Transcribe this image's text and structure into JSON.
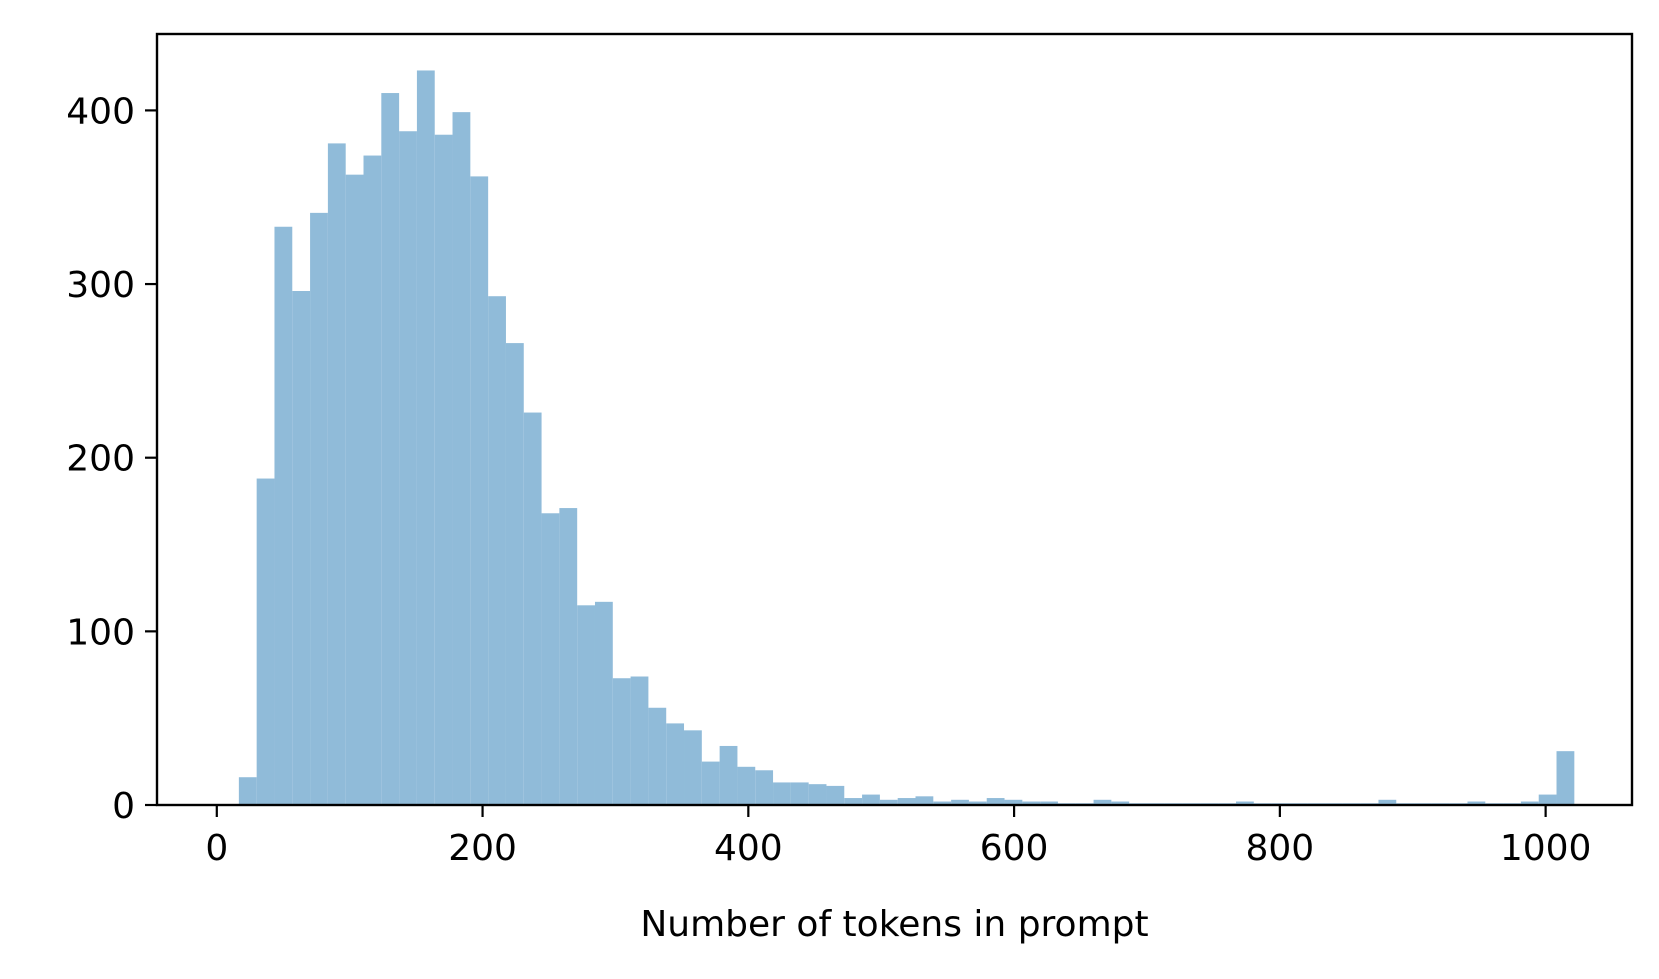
{
  "chart_data": {
    "type": "bar",
    "title": "",
    "xlabel": "Number of tokens in prompt",
    "ylabel": "",
    "xlim": [
      -45,
      1065
    ],
    "ylim": [
      0,
      444
    ],
    "grid": false,
    "legend": "none",
    "x_ticks": [
      0,
      200,
      400,
      600,
      800,
      1000
    ],
    "y_ticks": [
      0,
      100,
      200,
      300,
      400
    ],
    "bar_color": "#90bbd9",
    "bins": {
      "x_start": [
        16.6,
        30,
        43.4,
        56.8,
        70.2,
        83.6,
        97,
        110.4,
        123.8,
        137.2,
        150.6,
        164,
        177.4,
        190.8,
        204.2,
        217.6,
        231,
        244.4,
        257.8,
        271.2,
        284.6,
        298,
        311.4,
        324.8,
        338.2,
        351.6,
        365,
        378.4,
        391.8,
        405.2,
        418.6,
        432,
        445.4,
        458.8,
        472.2,
        485.6,
        499,
        512.4,
        525.8,
        539.2,
        552.6,
        566,
        579.4,
        592.8,
        606.2,
        619.6,
        633,
        646.4,
        659.8,
        673.2,
        686.6,
        700,
        713.4,
        726.8,
        740.2,
        753.6,
        767,
        780.4,
        793.8,
        807.2,
        820.6,
        834,
        847.4,
        860.8,
        874.2,
        887.6,
        901,
        914.4,
        927.8,
        941.2,
        954.6,
        968,
        981.4,
        994.8,
        1008.2
      ],
      "x_end": [
        30,
        43.4,
        56.8,
        70.2,
        83.6,
        97,
        110.4,
        123.8,
        137.2,
        150.6,
        164,
        177.4,
        190.8,
        204.2,
        217.6,
        231,
        244.4,
        257.8,
        271.2,
        284.6,
        298,
        311.4,
        324.8,
        338.2,
        351.6,
        365,
        378.4,
        391.8,
        405.2,
        418.6,
        432,
        445.4,
        458.8,
        472.2,
        485.6,
        499,
        512.4,
        525.8,
        539.2,
        552.6,
        566,
        579.4,
        592.8,
        606.2,
        619.6,
        633,
        646.4,
        659.8,
        673.2,
        686.6,
        700,
        713.4,
        726.8,
        740.2,
        753.6,
        767,
        780.4,
        793.8,
        807.2,
        820.6,
        834,
        847.4,
        860.8,
        874.2,
        887.6,
        901,
        914.4,
        927.8,
        941.2,
        954.6,
        968,
        981.4,
        994.8,
        1008.2,
        1021.6
      ],
      "counts": [
        16,
        188,
        333,
        296,
        341,
        381,
        363,
        374,
        410,
        388,
        423,
        386,
        399,
        362,
        293,
        266,
        226,
        168,
        171,
        115,
        117,
        73,
        74,
        56,
        47,
        43,
        25,
        34,
        22,
        20,
        13,
        13,
        12,
        11,
        4,
        6,
        3,
        4,
        5,
        2,
        3,
        2,
        4,
        3,
        2,
        2,
        1,
        1,
        3,
        2,
        1,
        1,
        1,
        1,
        1,
        1,
        2,
        1,
        1,
        1,
        1,
        1,
        1,
        1,
        3,
        1,
        1,
        1,
        1,
        2,
        1,
        1,
        2,
        6,
        31
      ]
    }
  }
}
